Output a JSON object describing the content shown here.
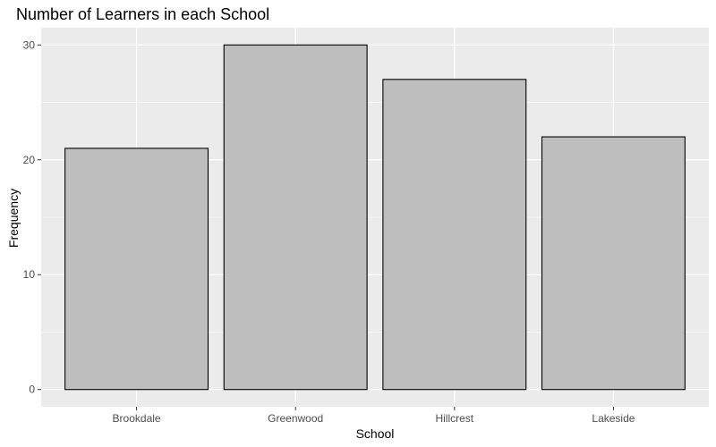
{
  "chart_data": {
    "type": "bar",
    "title": "Number of Learners in each School",
    "xlabel": "School",
    "ylabel": "Frequency",
    "categories": [
      "Brookdale",
      "Greenwood",
      "Hillcrest",
      "Lakeside"
    ],
    "values": [
      21,
      30,
      27,
      22
    ],
    "ylim": [
      -1.5,
      31.5
    ],
    "yticks": [
      0,
      10,
      20,
      30
    ],
    "grid": true,
    "legend": "none",
    "colors": {
      "panel_background": "#ebebeb",
      "grid": "#ffffff",
      "bar_fill": "#bebebe",
      "bar_outline": "#000000"
    }
  }
}
